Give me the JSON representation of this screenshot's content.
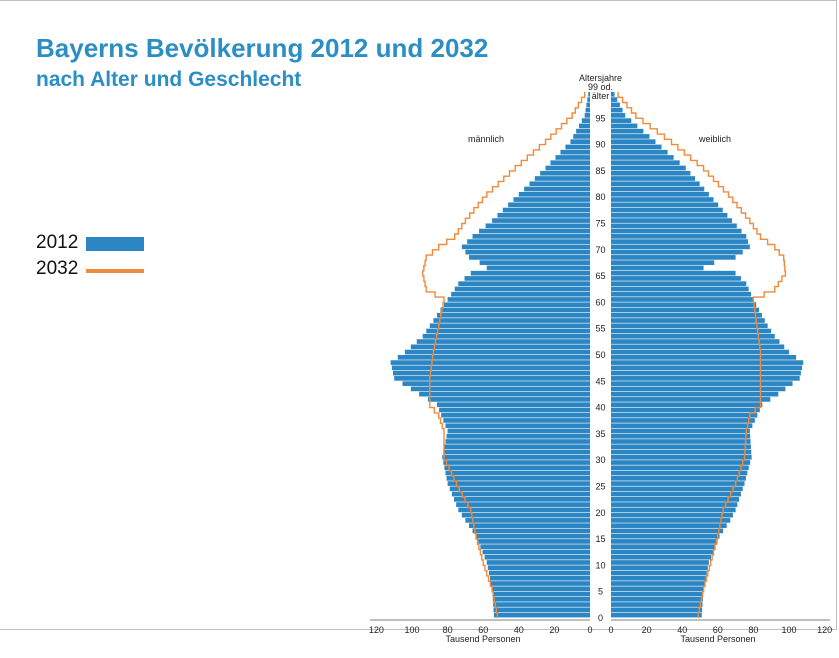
{
  "title": "Bayerns Bevölkerung 2012 und 2032",
  "subtitle": "nach Alter und Geschlecht",
  "legend": [
    {
      "label": "2012",
      "color": "#2b86c3",
      "kind": "bar"
    },
    {
      "label": "2032",
      "color": "#f08a3c",
      "kind": "line"
    }
  ],
  "chart_data": {
    "type": "bar",
    "orientation": "horizontal-population-pyramid",
    "title": "Bayerns Bevölkerung 2012 und 2032",
    "subtitle": "nach Alter und Geschlecht",
    "age_axis_label": [
      "Altersjahre",
      "99 od.",
      "älter"
    ],
    "age_ticks": [
      0,
      5,
      10,
      15,
      20,
      25,
      30,
      35,
      40,
      45,
      50,
      55,
      60,
      65,
      70,
      75,
      80,
      85,
      90,
      95
    ],
    "x_tick_labels_left": [
      "120",
      "100",
      "80",
      "60",
      "40",
      "20",
      "0"
    ],
    "x_tick_labels_right": [
      "0",
      "20",
      "40",
      "60",
      "80",
      "100",
      "120"
    ],
    "x_label": "Tausend Personen",
    "xlim": [
      0,
      120
    ],
    "left_label": "männlich",
    "right_label": "weiblich",
    "colors": {
      "bars_2012": "#2b86c3",
      "line_2032_male": "#f08a3c",
      "line_2032_female": "#f08a3c",
      "line_2032_young": "#8a8a8a"
    },
    "series": [
      {
        "name": "2012",
        "side": "männlich",
        "ages": [
          0,
          5,
          10,
          15,
          18,
          20,
          25,
          30,
          35,
          40,
          42,
          45,
          48,
          50,
          53,
          55,
          60,
          63,
          65,
          66,
          67,
          68,
          70,
          72,
          75,
          80,
          85,
          90,
          95,
          99
        ],
        "values": [
          54,
          55,
          58,
          64,
          70,
          74,
          80,
          83,
          80,
          86,
          96,
          110,
          112,
          104,
          94,
          90,
          80,
          74,
          67,
          58,
          62,
          68,
          72,
          66,
          55,
          40,
          25,
          11,
          3,
          1
        ]
      },
      {
        "name": "2012",
        "side": "weiblich",
        "ages": [
          0,
          5,
          10,
          15,
          18,
          20,
          25,
          30,
          35,
          40,
          42,
          45,
          48,
          50,
          53,
          55,
          60,
          63,
          65,
          66,
          67,
          68,
          70,
          72,
          75,
          80,
          85,
          90,
          95,
          99
        ],
        "values": [
          51,
          52,
          55,
          61,
          67,
          70,
          75,
          79,
          78,
          85,
          94,
          106,
          108,
          100,
          92,
          88,
          80,
          76,
          70,
          52,
          58,
          70,
          78,
          76,
          68,
          55,
          42,
          25,
          8,
          2
        ]
      },
      {
        "name": "2032",
        "side": "männlich",
        "ages": [
          0,
          5,
          10,
          15,
          20,
          25,
          30,
          35,
          38,
          40,
          45,
          50,
          55,
          60,
          62,
          65,
          68,
          70,
          72,
          75,
          80,
          85,
          90,
          95,
          99
        ],
        "values": [
          52,
          55,
          60,
          64,
          67,
          75,
          82,
          82,
          85,
          90,
          90,
          88,
          85,
          82,
          92,
          94,
          92,
          85,
          76,
          70,
          58,
          42,
          25,
          10,
          3
        ]
      },
      {
        "name": "2032",
        "side": "weiblich",
        "ages": [
          0,
          5,
          10,
          15,
          20,
          25,
          30,
          35,
          38,
          40,
          45,
          50,
          55,
          60,
          62,
          65,
          68,
          70,
          72,
          75,
          80,
          85,
          90,
          95,
          99
        ],
        "values": [
          49,
          52,
          56,
          60,
          63,
          70,
          75,
          76,
          78,
          84,
          84,
          84,
          82,
          80,
          92,
          98,
          97,
          92,
          84,
          78,
          66,
          52,
          34,
          14,
          4
        ]
      }
    ]
  }
}
